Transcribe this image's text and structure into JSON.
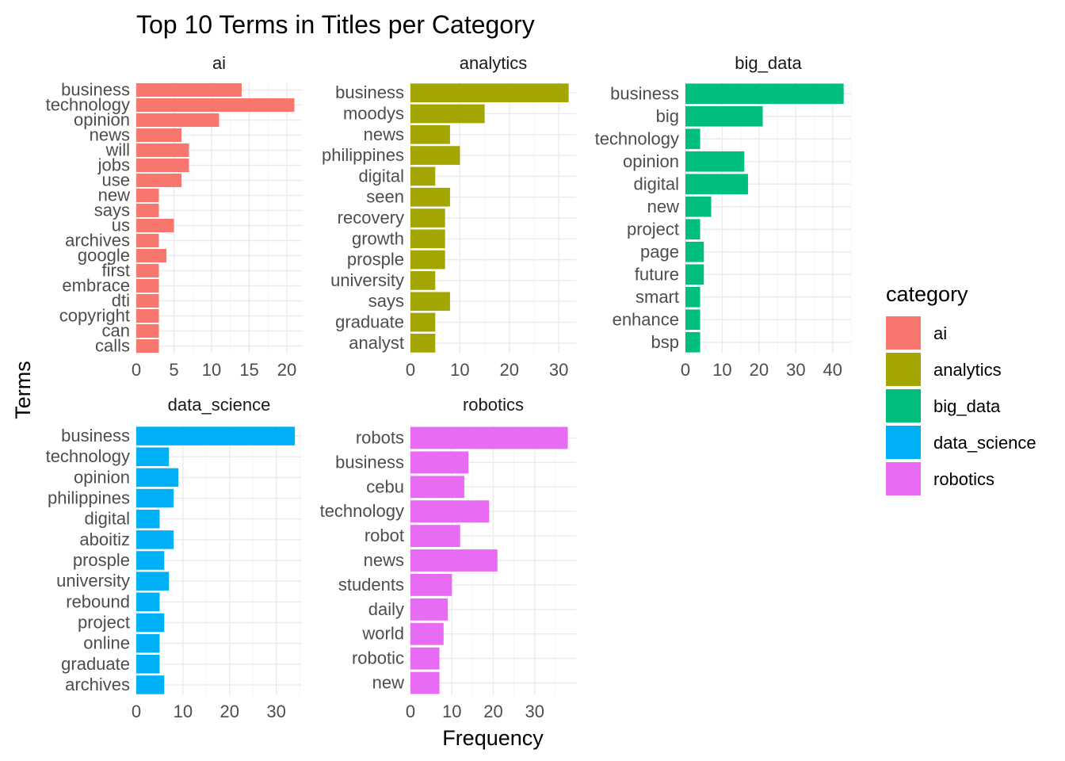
{
  "chart_data": {
    "type": "bar",
    "title": "Top 10 Terms in Titles per Category",
    "xlabel": "Frequency",
    "ylabel": "Terms",
    "legend": {
      "title": "category",
      "placement": "right",
      "items": [
        {
          "label": "ai",
          "color": "#F8766D"
        },
        {
          "label": "analytics",
          "color": "#A3A500"
        },
        {
          "label": "big_data",
          "color": "#00BF7D"
        },
        {
          "label": "data_science",
          "color": "#00B0F6"
        },
        {
          "label": "robotics",
          "color": "#E76BF3"
        }
      ]
    },
    "grid": true,
    "panels": [
      {
        "name": "ai",
        "color": "#F8766D",
        "xlim": [
          0,
          22
        ],
        "xticks": [
          0,
          5,
          10,
          15,
          20
        ],
        "categories": [
          "business",
          "technology",
          "opinion",
          "news",
          "will",
          "jobs",
          "use",
          "new",
          "says",
          "us",
          "archives",
          "google",
          "first",
          "embrace",
          "dti",
          "copyright",
          "can",
          "calls"
        ],
        "values": [
          14,
          21,
          11,
          6,
          7,
          7,
          6,
          3,
          3,
          5,
          3,
          4,
          3,
          3,
          3,
          3,
          3,
          3
        ]
      },
      {
        "name": "analytics",
        "color": "#A3A500",
        "xlim": [
          0,
          33.5
        ],
        "xticks": [
          0,
          10,
          20,
          30
        ],
        "categories": [
          "business",
          "moodys",
          "news",
          "philippines",
          "digital",
          "seen",
          "recovery",
          "growth",
          "prosple",
          "university",
          "says",
          "graduate",
          "analyst"
        ],
        "values": [
          32,
          15,
          8,
          10,
          5,
          8,
          7,
          7,
          7,
          5,
          8,
          5,
          5
        ]
      },
      {
        "name": "big_data",
        "color": "#00BF7D",
        "xlim": [
          0,
          45
        ],
        "xticks": [
          0,
          10,
          20,
          30,
          40
        ],
        "categories": [
          "business",
          "big",
          "technology",
          "opinion",
          "digital",
          "new",
          "project",
          "page",
          "future",
          "smart",
          "enhance",
          "bsp"
        ],
        "values": [
          43,
          21,
          4,
          16,
          17,
          7,
          4,
          5,
          5,
          4,
          4,
          4
        ]
      },
      {
        "name": "data_science",
        "color": "#00B0F6",
        "xlim": [
          0,
          35.5
        ],
        "xticks": [
          0,
          10,
          20,
          30
        ],
        "categories": [
          "business",
          "technology",
          "opinion",
          "philippines",
          "digital",
          "aboitiz",
          "prosple",
          "university",
          "rebound",
          "project",
          "online",
          "graduate",
          "archives"
        ],
        "values": [
          34,
          7,
          9,
          8,
          5,
          8,
          6,
          7,
          5,
          6,
          5,
          5,
          6
        ]
      },
      {
        "name": "robotics",
        "color": "#E76BF3",
        "xlim": [
          0,
          40
        ],
        "xticks": [
          0,
          10,
          20,
          30
        ],
        "categories": [
          "robots",
          "business",
          "cebu",
          "technology",
          "robot",
          "news",
          "students",
          "daily",
          "world",
          "robotic",
          "new"
        ],
        "values": [
          38,
          14,
          13,
          19,
          12,
          21,
          10,
          9,
          8,
          7,
          7
        ]
      }
    ]
  }
}
